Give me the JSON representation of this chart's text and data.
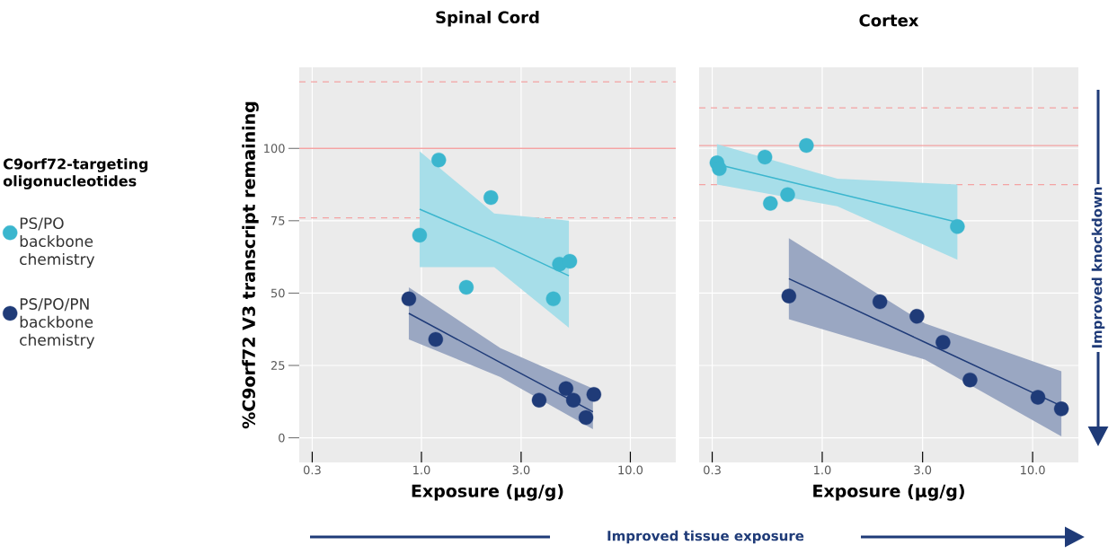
{
  "chart_data": [
    {
      "type": "scatter",
      "title": "Spinal Cord",
      "xlabel": "Exposure (µg/g)",
      "ylabel": "%C9orf72 V3 transcript remaining",
      "legend_title": "C9orf72-targeting oligonucleotides",
      "legend": "left",
      "marker": "circle",
      "grid": true,
      "log": "x",
      "xlim": [
        0.26,
        16.5
      ],
      "ylim": [
        -8.5,
        128
      ],
      "xticks": [
        0.3,
        {
          "value": 1,
          "label": "1.0"
        },
        {
          "value": 3,
          "label": "3.0"
        },
        {
          "value": 10,
          "label": "10.0"
        }
      ],
      "yticks": [
        0,
        25,
        50,
        75,
        100
      ],
      "ref_lines": [
        {
          "axis": "y",
          "value": 100,
          "color": "#f4a3a3",
          "line_style": "solid"
        },
        {
          "axis": "y",
          "value": 123,
          "color": "#f4a3a3",
          "line_style": "dashed"
        },
        {
          "axis": "y",
          "value": 76,
          "color": "#f4a3a3",
          "line_style": "dashed"
        }
      ],
      "series": [
        {
          "name": "PS/PO backbone chemistry",
          "color": "#3bb6ce",
          "x": [
            0.98,
            1.21,
            2.15,
            1.64,
            4.28,
            4.58,
            5.13
          ],
          "values": [
            70,
            96,
            83,
            52,
            48,
            60,
            61
          ]
        },
        {
          "type": "line",
          "marker": "none",
          "color": "#3bb6ce",
          "x": [
            0.98,
            2.23,
            5.08
          ],
          "values": [
            79,
            68,
            56
          ],
          "lower": [
            59,
            59,
            38
          ],
          "upper": [
            99,
            77.5,
            75
          ]
        },
        {
          "name": "PS/PO/PN backbone chemistry",
          "color": "#1f3b78",
          "x": [
            0.87,
            1.17,
            3.66,
            4.92,
            5.34,
            6.13,
            6.69
          ],
          "values": [
            48,
            34,
            13,
            17,
            13,
            7,
            15
          ]
        },
        {
          "type": "line",
          "marker": "none",
          "color": "#1f3b78",
          "x": [
            0.87,
            2.39,
            6.62
          ],
          "values": [
            43,
            26,
            9
          ],
          "lower": [
            34,
            21,
            3
          ],
          "upper": [
            52,
            31,
            17
          ]
        }
      ]
    },
    {
      "type": "scatter",
      "title": "Cortex",
      "xlabel": "Exposure (µg/g)",
      "marker": "circle",
      "grid": true,
      "log": "x",
      "tick_labels": "x",
      "xlim": [
        0.26,
        16.5
      ],
      "ylim": [
        -8.5,
        128
      ],
      "xticks": [
        0.3,
        {
          "value": 1,
          "label": "1.0"
        },
        {
          "value": 3,
          "label": "3.0"
        },
        {
          "value": 10,
          "label": "10.0"
        }
      ],
      "yticks": [
        0,
        25,
        50,
        75,
        100
      ],
      "annotations": [
        "Improved knockdown",
        "Improved tissue exposure"
      ],
      "ref_lines": [
        {
          "axis": "y",
          "value": 101,
          "color": "#f4a3a3",
          "line_style": "solid"
        },
        {
          "axis": "y",
          "value": 114,
          "color": "#f4a3a3",
          "line_style": "dashed"
        },
        {
          "axis": "y",
          "value": 87.5,
          "color": "#f4a3a3",
          "line_style": "dashed"
        }
      ],
      "series": [
        {
          "color": "#3bb6ce",
          "x": [
            0.316,
            0.324,
            0.534,
            0.841,
            0.685,
            0.567,
            4.39
          ],
          "values": [
            95,
            93,
            97,
            101,
            84,
            81,
            73
          ]
        },
        {
          "type": "line",
          "marker": "none",
          "color": "#3bb6ce",
          "x": [
            0.316,
            1.18,
            4.39
          ],
          "values": [
            94.5,
            84.5,
            74.5
          ],
          "lower": [
            87.5,
            80,
            61.5
          ],
          "upper": [
            101.5,
            89.5,
            87.5
          ]
        },
        {
          "color": "#1f3b78",
          "x": [
            0.694,
            1.88,
            2.82,
            3.75,
            5.04,
            10.6,
            13.7
          ],
          "values": [
            49,
            47,
            42,
            33,
            20,
            14,
            10
          ]
        },
        {
          "type": "line",
          "marker": "none",
          "color": "#1f3b78",
          "x": [
            0.694,
            3.08,
            13.7
          ],
          "values": [
            55,
            33,
            11
          ],
          "lower": [
            41,
            27,
            0.5
          ],
          "upper": [
            69,
            39.5,
            23
          ]
        }
      ]
    }
  ]
}
